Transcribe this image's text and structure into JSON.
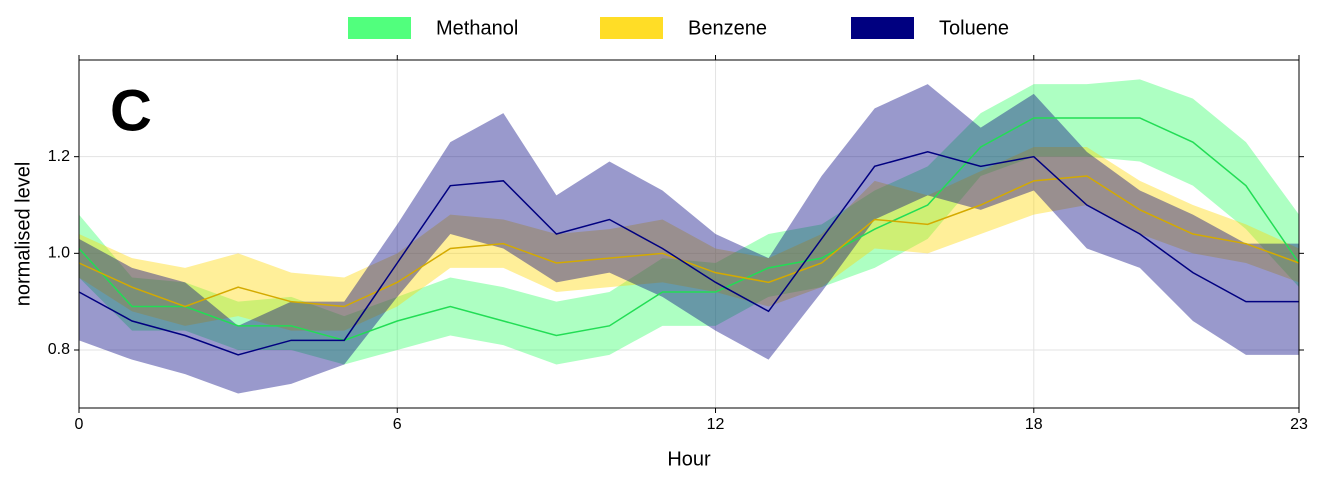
{
  "chart_data": {
    "type": "line_band",
    "annotation": "C",
    "x_label": "Hour",
    "y_label": "normalised level",
    "x": [
      0,
      1,
      2,
      3,
      4,
      5,
      6,
      7,
      8,
      9,
      10,
      11,
      12,
      13,
      14,
      15,
      16,
      17,
      18,
      19,
      20,
      21,
      22,
      23
    ],
    "xlim": [
      0,
      23
    ],
    "xticks": [
      0,
      6,
      12,
      18,
      23
    ],
    "ylim": [
      0.68,
      1.4
    ],
    "yticks": [
      0.8,
      {
        "value": 1.0,
        "label": "1.0"
      },
      1.2
    ],
    "grid": true,
    "legend": "top",
    "series": [
      {
        "name": "Methanol",
        "color": "#33ff66",
        "line_color": "#22dd55",
        "values": [
          1.01,
          0.89,
          0.89,
          0.85,
          0.85,
          0.82,
          0.86,
          0.89,
          0.86,
          0.83,
          0.85,
          0.92,
          0.92,
          0.97,
          0.99,
          1.05,
          1.1,
          1.22,
          1.28,
          1.28,
          1.28,
          1.23,
          1.14,
          0.98
        ],
        "lower": [
          0.95,
          0.84,
          0.84,
          0.8,
          0.8,
          0.77,
          0.8,
          0.83,
          0.81,
          0.77,
          0.79,
          0.85,
          0.85,
          0.91,
          0.93,
          0.97,
          1.03,
          1.16,
          1.2,
          1.2,
          1.19,
          1.14,
          1.05,
          0.93
        ],
        "upper": [
          1.08,
          0.95,
          0.94,
          0.9,
          0.91,
          0.87,
          0.91,
          0.95,
          0.93,
          0.9,
          0.92,
          0.99,
          0.98,
          1.04,
          1.06,
          1.13,
          1.18,
          1.29,
          1.35,
          1.35,
          1.36,
          1.32,
          1.23,
          1.08
        ]
      },
      {
        "name": "Benzene",
        "color": "#ffd700",
        "line_color": "#d4aa00",
        "values": [
          0.98,
          0.93,
          0.89,
          0.93,
          0.9,
          0.89,
          0.94,
          1.01,
          1.02,
          0.98,
          0.99,
          1.0,
          0.96,
          0.94,
          0.98,
          1.07,
          1.06,
          1.1,
          1.15,
          1.16,
          1.09,
          1.04,
          1.02,
          0.98
        ],
        "lower": [
          0.95,
          0.88,
          0.85,
          0.87,
          0.84,
          0.84,
          0.89,
          0.97,
          0.97,
          0.92,
          0.93,
          0.94,
          0.92,
          0.89,
          0.93,
          1.01,
          1.0,
          1.04,
          1.08,
          1.1,
          1.04,
          1.0,
          0.98,
          0.94
        ],
        "upper": [
          1.04,
          0.99,
          0.97,
          1.0,
          0.96,
          0.95,
          1.0,
          1.08,
          1.07,
          1.04,
          1.05,
          1.07,
          1.01,
          0.99,
          1.04,
          1.15,
          1.12,
          1.17,
          1.22,
          1.22,
          1.15,
          1.1,
          1.06,
          1.01
        ]
      },
      {
        "name": "Toluene",
        "color": "#000080",
        "line_color": "#000080",
        "values": [
          0.92,
          0.86,
          0.83,
          0.79,
          0.82,
          0.82,
          0.98,
          1.14,
          1.15,
          1.04,
          1.07,
          1.01,
          0.94,
          0.88,
          1.03,
          1.18,
          1.21,
          1.18,
          1.2,
          1.1,
          1.04,
          0.96,
          0.9,
          0.9
        ],
        "lower": [
          0.82,
          0.78,
          0.75,
          0.71,
          0.73,
          0.77,
          0.91,
          1.04,
          1.01,
          0.94,
          0.96,
          0.91,
          0.84,
          0.78,
          0.92,
          1.07,
          1.12,
          1.09,
          1.13,
          1.01,
          0.97,
          0.86,
          0.79,
          0.79
        ],
        "upper": [
          1.03,
          0.97,
          0.94,
          0.85,
          0.9,
          0.9,
          1.06,
          1.23,
          1.29,
          1.12,
          1.19,
          1.13,
          1.04,
          0.99,
          1.16,
          1.3,
          1.35,
          1.26,
          1.33,
          1.21,
          1.13,
          1.08,
          1.02,
          1.02
        ]
      }
    ]
  }
}
